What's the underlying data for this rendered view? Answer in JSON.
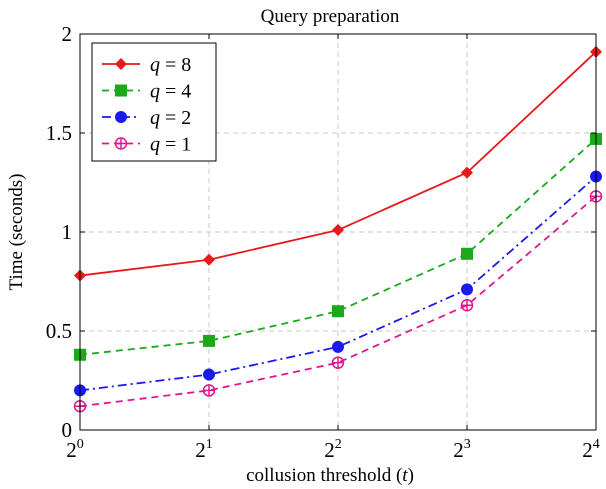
{
  "chart_data": {
    "type": "line",
    "title": "Query preparation",
    "xlabel": "collusion threshold (",
    "xlabel_var": "t",
    "xlabel_close": ")",
    "ylabel": "Time (seconds)",
    "x": [
      1,
      2,
      4,
      8,
      16
    ],
    "x_tick_labels": [
      {
        "base": "2",
        "exp": "0"
      },
      {
        "base": "2",
        "exp": "1"
      },
      {
        "base": "2",
        "exp": "2"
      },
      {
        "base": "2",
        "exp": "3"
      },
      {
        "base": "2",
        "exp": "4"
      }
    ],
    "x_scale": "log2",
    "ylim": [
      0,
      2
    ],
    "y_ticks": [
      0,
      0.5,
      1,
      1.5,
      2
    ],
    "y_tick_labels": [
      "0",
      "0.5",
      "1",
      "1.5",
      "2"
    ],
    "grid": true,
    "legend_position": "top-left",
    "series": [
      {
        "name_var": "q",
        "name_eq": " = ",
        "name_val": "8",
        "color": "#e8191a",
        "marker": "diamond",
        "dash": "solid",
        "values": [
          0.78,
          0.86,
          1.01,
          1.3,
          1.91
        ]
      },
      {
        "name_var": "q",
        "name_eq": " = ",
        "name_val": "4",
        "color": "#19a919",
        "marker": "square",
        "dash": "dashed",
        "values": [
          0.38,
          0.45,
          0.6,
          0.89,
          1.47
        ]
      },
      {
        "name_var": "q",
        "name_eq": " = ",
        "name_val": "2",
        "color": "#1a1aee",
        "marker": "circle",
        "dash": "dashdot",
        "values": [
          0.2,
          0.28,
          0.42,
          0.71,
          1.28
        ]
      },
      {
        "name_var": "q",
        "name_eq": " = ",
        "name_val": "1",
        "color": "#e0168e",
        "marker": "oplus",
        "dash": "dashed",
        "values": [
          0.12,
          0.2,
          0.34,
          0.63,
          1.18
        ]
      }
    ]
  }
}
